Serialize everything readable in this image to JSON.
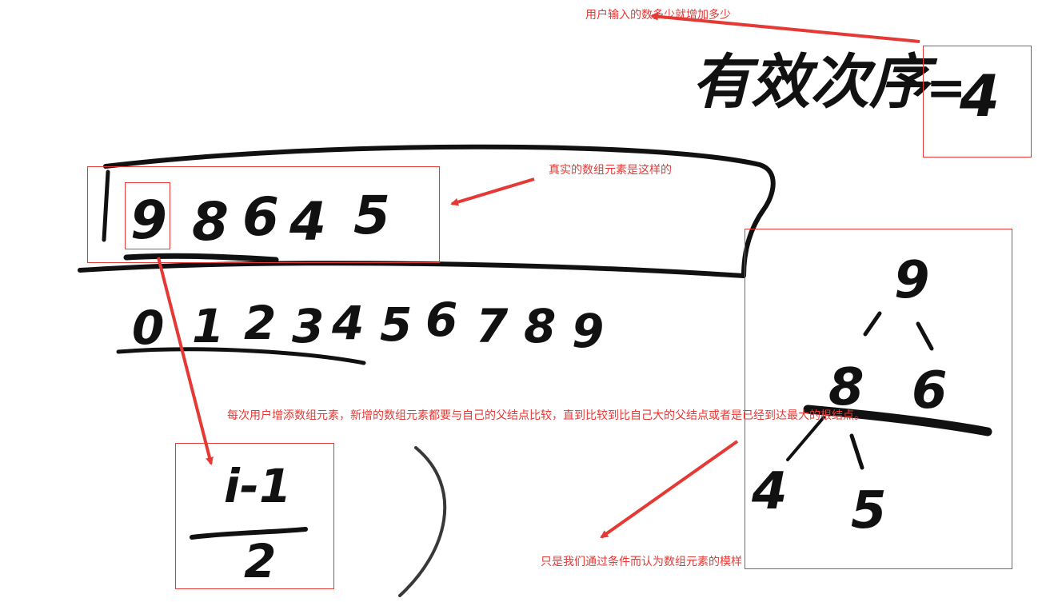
{
  "annotations": {
    "user_input_note": "用户输入的数多少就增加多少",
    "real_array_note": "真实的数组元素是这样的",
    "heap_rule_note": "每次用户增添数组元素，新增的数组元素都要与自己的父结点比较，直到比较到比自己大的父结点或者是已经到达最大的根结点。",
    "conceptual_note": "只是我们通过条件而认为数组元素的模样"
  },
  "handwriting": {
    "valid_label": "有效次序",
    "equals": "=",
    "valid_count": "4",
    "array_values": [
      "9",
      "8",
      "6",
      "4",
      "5"
    ],
    "indices": [
      "0",
      "1",
      "2",
      "3",
      "4",
      "5",
      "6",
      "7",
      "8",
      "9"
    ],
    "formula_numerator": "i-1",
    "formula_denominator": "2",
    "tree_nodes": {
      "root": "9",
      "left": "8",
      "right": "6",
      "left_left": "4",
      "left_right": "5"
    }
  },
  "colors": {
    "annotation": "#e53935",
    "ink": "#111111"
  }
}
